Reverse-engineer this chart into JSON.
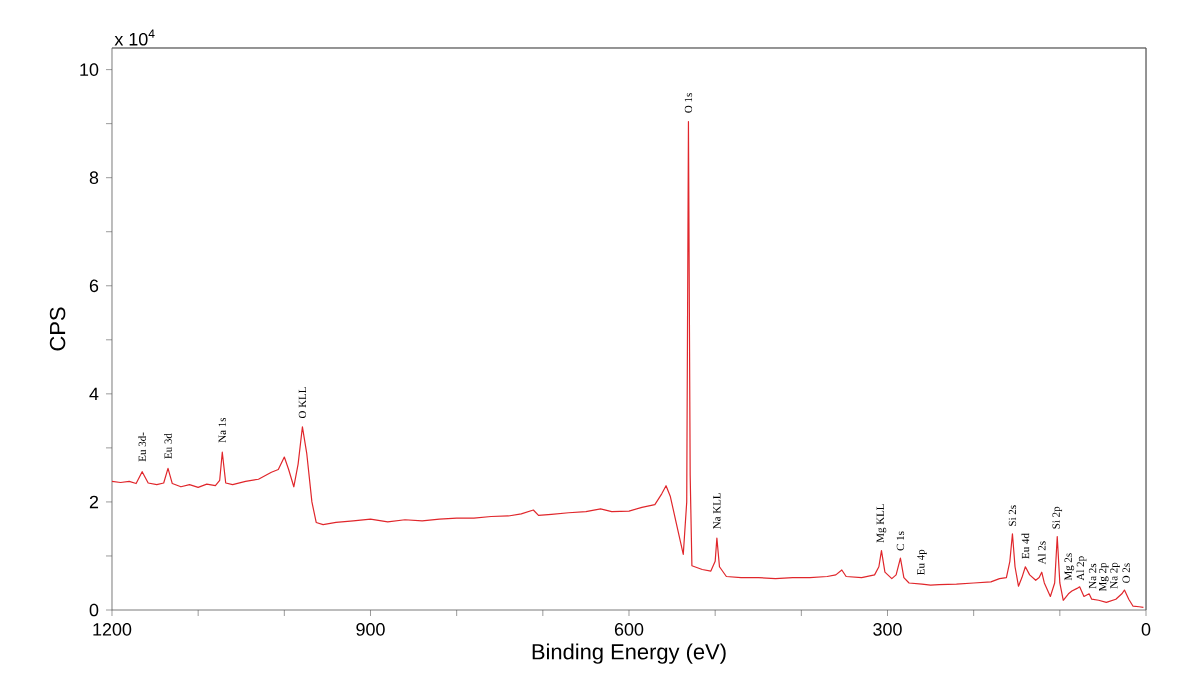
{
  "chart_data": {
    "type": "line",
    "xlabel": "Binding Energy (eV)",
    "ylabel": "CPS",
    "x": [
      1200,
      1190,
      1180,
      1172,
      1165,
      1158,
      1148,
      1140,
      1135,
      1130,
      1120,
      1110,
      1100,
      1090,
      1080,
      1075,
      1072,
      1068,
      1060,
      1045,
      1030,
      1015,
      1007,
      1000,
      995,
      989,
      984,
      979,
      974,
      968,
      963,
      955,
      940,
      920,
      900,
      880,
      860,
      840,
      820,
      800,
      780,
      760,
      740,
      725,
      711,
      705,
      690,
      670,
      650,
      633,
      620,
      600,
      585,
      570,
      562,
      557,
      552,
      545,
      537,
      533,
      531,
      529,
      527,
      515,
      505,
      500,
      498,
      495,
      487,
      470,
      450,
      430,
      410,
      390,
      370,
      360,
      353,
      348,
      330,
      315,
      310,
      307,
      303,
      295,
      290,
      285,
      281,
      275,
      260,
      250,
      240,
      220,
      200,
      180,
      170,
      162,
      158,
      155,
      152,
      148,
      144,
      140,
      135,
      128,
      124,
      121,
      118,
      111,
      106,
      103,
      100,
      96,
      90,
      86,
      80,
      77,
      72,
      66,
      63,
      55,
      46,
      35,
      28,
      25,
      20,
      15,
      8,
      3
    ],
    "series": [
      {
        "color": "#e0262b",
        "values": [
          2.38,
          2.36,
          2.38,
          2.34,
          2.56,
          2.35,
          2.32,
          2.35,
          2.62,
          2.34,
          2.28,
          2.32,
          2.27,
          2.33,
          2.3,
          2.4,
          2.92,
          2.35,
          2.32,
          2.38,
          2.42,
          2.55,
          2.6,
          2.83,
          2.6,
          2.28,
          2.7,
          3.39,
          2.9,
          2.0,
          1.62,
          1.58,
          1.62,
          1.65,
          1.68,
          1.63,
          1.67,
          1.65,
          1.68,
          1.7,
          1.7,
          1.73,
          1.74,
          1.78,
          1.85,
          1.75,
          1.77,
          1.8,
          1.82,
          1.87,
          1.82,
          1.83,
          1.9,
          1.95,
          2.15,
          2.3,
          2.1,
          1.6,
          1.03,
          2.0,
          9.04,
          2.5,
          0.82,
          0.75,
          0.72,
          0.9,
          1.33,
          0.8,
          0.62,
          0.6,
          0.6,
          0.58,
          0.6,
          0.6,
          0.62,
          0.65,
          0.74,
          0.62,
          0.6,
          0.65,
          0.8,
          1.1,
          0.7,
          0.58,
          0.65,
          0.96,
          0.6,
          0.5,
          0.48,
          0.46,
          0.47,
          0.48,
          0.5,
          0.52,
          0.58,
          0.6,
          0.9,
          1.41,
          0.8,
          0.44,
          0.6,
          0.8,
          0.65,
          0.55,
          0.6,
          0.7,
          0.5,
          0.25,
          0.5,
          1.36,
          0.5,
          0.18,
          0.3,
          0.35,
          0.4,
          0.43,
          0.25,
          0.3,
          0.2,
          0.18,
          0.14,
          0.2,
          0.3,
          0.37,
          0.2,
          0.07,
          0.06,
          0.05
        ]
      }
    ],
    "xlim": [
      1200,
      0
    ],
    "ylim": [
      0,
      10.4
    ],
    "xticks": [
      1200,
      {
        "value": 1100,
        "label": null
      },
      {
        "value": 1000,
        "label": null
      },
      900,
      {
        "value": 800,
        "label": null
      },
      {
        "value": 700,
        "label": null
      },
      600,
      {
        "value": 500,
        "label": null
      },
      {
        "value": 400,
        "label": null
      },
      300,
      {
        "value": 200,
        "label": null
      },
      {
        "value": 100,
        "label": null
      },
      0
    ],
    "yticks": [
      0,
      {
        "value": 1,
        "label": null
      },
      2,
      {
        "value": 3,
        "label": null
      },
      4,
      {
        "value": 5,
        "label": null
      },
      6,
      {
        "value": 7,
        "label": null
      },
      8,
      {
        "value": 9,
        "label": null
      },
      10
    ],
    "annotations": [
      "x 10$^{4}$",
      {
        "text": "Eu 3d-",
        "x": 1165,
        "y": 2.7
      },
      {
        "text": "Eu 3d",
        "x": 1135,
        "y": 2.75
      },
      {
        "text": "Na 1s",
        "x": 1072,
        "y": 3.05
      },
      {
        "text": "O KLL",
        "x": 979,
        "y": 3.5
      },
      {
        "text": "O 1s",
        "x": 531,
        "y": 9.15
      },
      {
        "text": "Na KLL",
        "x": 498,
        "y": 1.45
      },
      {
        "text": "Mg KLL",
        "x": 307,
        "y": 1.2
      },
      {
        "text": "C 1s",
        "x": 285,
        "y": 1.05
      },
      {
        "text": "Eu 4p",
        "x": 260,
        "y": 0.6
      },
      {
        "text": "Si 2s",
        "x": 155,
        "y": 1.5
      },
      {
        "text": "Eu 4d",
        "x": 140,
        "y": 0.9
      },
      {
        "text": "Al 2s",
        "x": 121,
        "y": 0.8
      },
      {
        "text": "Si 2p",
        "x": 103,
        "y": 1.45
      },
      {
        "text": "Mg 2s",
        "x": 89,
        "y": 0.5
      },
      {
        "text": "Al 2p",
        "x": 75,
        "y": 0.5
      },
      {
        "text": "Na 2s",
        "x": 62,
        "y": 0.35
      },
      {
        "text": "Mg 2p",
        "x": 49,
        "y": 0.3
      },
      {
        "text": "Na 2p",
        "x": 36,
        "y": 0.35
      },
      {
        "text": "O 2s",
        "x": 23,
        "y": 0.45
      }
    ]
  }
}
